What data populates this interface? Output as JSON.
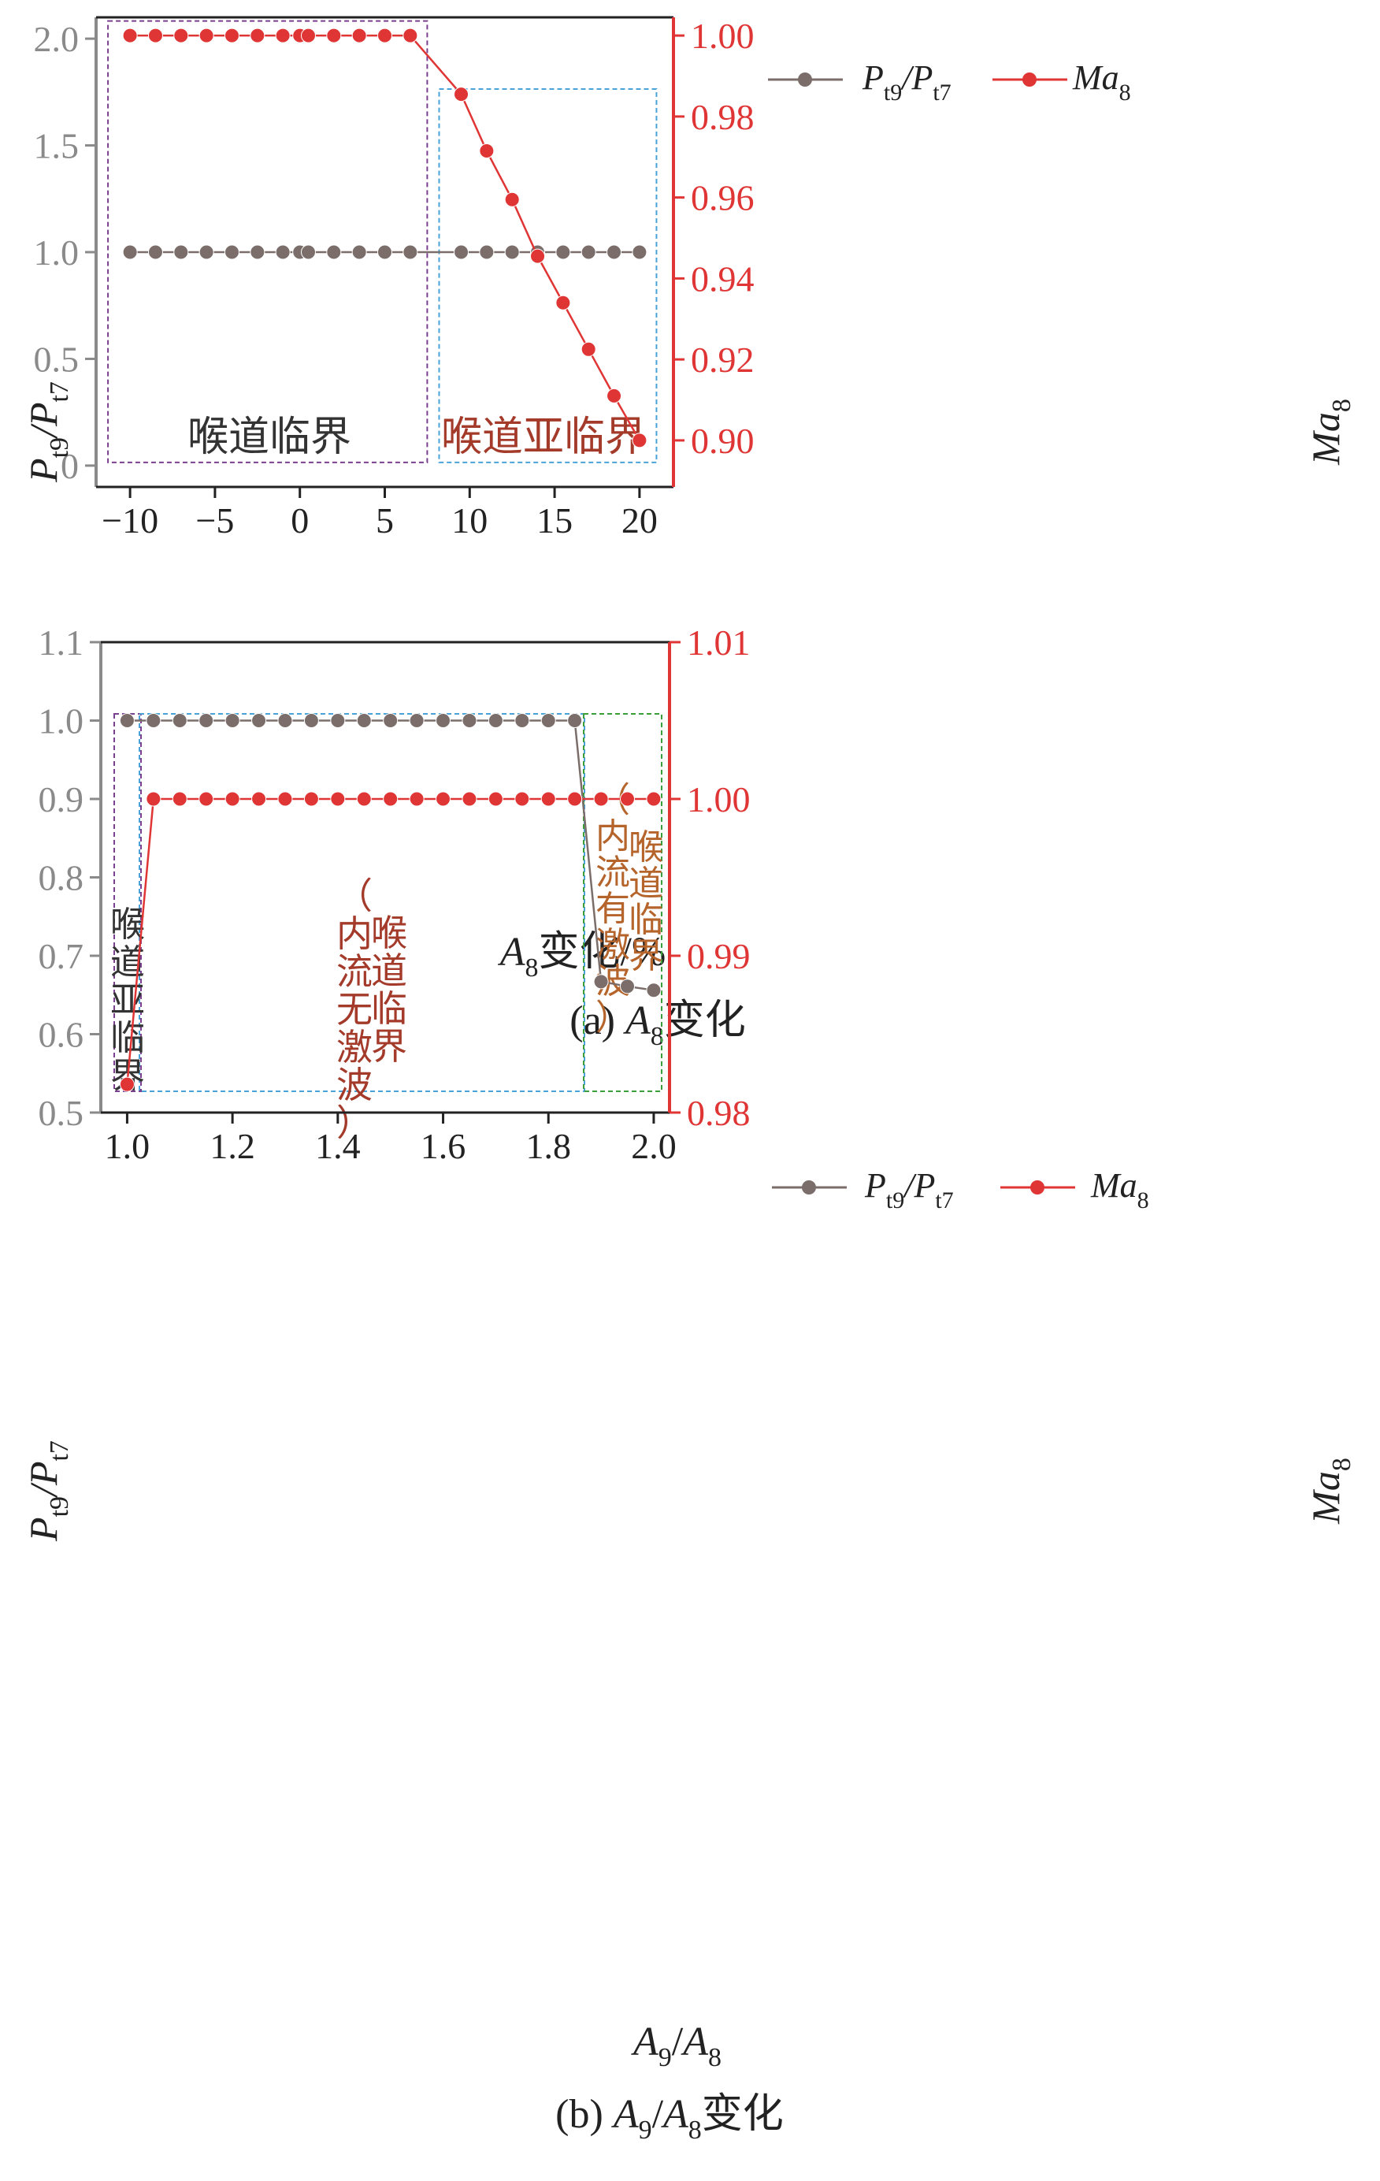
{
  "colors": {
    "gray": "#7b6e6a",
    "red": "#e03535",
    "purple_box": "#7a3f8f",
    "blue_box": "#4aa3d8",
    "green_box": "#3a9e3a",
    "text_dark_red": "#a33a2a",
    "text_brown": "#b5652c",
    "axis_gray": "#8a8a8a"
  },
  "chart_data": [
    {
      "type": "line",
      "caption": "(a) A8变化",
      "xlabel": "A8变化/%",
      "ylabel_left": "Pt9/Pt7",
      "ylabel_right": "Ma8",
      "xlim": [
        -12,
        22
      ],
      "ylim_left": [
        -0.1,
        2.1
      ],
      "ylim_right": [
        0.8885,
        1.0045
      ],
      "xticks": [
        "−10",
        "−5",
        "0",
        "5",
        "10",
        "15",
        "20"
      ],
      "yticks_left": [
        "0",
        "0.5",
        "1.0",
        "1.5",
        "2.0"
      ],
      "yticks_right": [
        "0.90",
        "0.92",
        "0.94",
        "0.96",
        "0.98",
        "1.00"
      ],
      "legend": [
        "Pt9/Pt7",
        "Ma8"
      ],
      "series": [
        {
          "name": "Pt9/Pt7",
          "axis": "left",
          "x": [
            -10,
            -8.5,
            -7,
            -5.5,
            -4,
            -2.5,
            -1,
            0,
            0.5,
            2,
            3.5,
            5,
            6.5,
            9.5,
            11,
            12.5,
            14,
            15.5,
            17,
            18.5,
            20
          ],
          "values": [
            1,
            1,
            1,
            1,
            1,
            1,
            1,
            1,
            1,
            1,
            1,
            1,
            1,
            1,
            1,
            1,
            1,
            1,
            1,
            1,
            1
          ]
        },
        {
          "name": "Ma8",
          "axis": "right",
          "x": [
            -10,
            -8.5,
            -7,
            -5.5,
            -4,
            -2.5,
            -1,
            0,
            0.5,
            2,
            3.5,
            5,
            6.5,
            9.5,
            11,
            12.5,
            14,
            15.5,
            17,
            18.5,
            20
          ],
          "values": [
            1.0,
            1.0,
            1.0,
            1.0,
            1.0,
            1.0,
            1.0,
            1.0,
            1.0,
            1.0,
            1.0,
            1.0,
            1.0,
            0.9855,
            0.9715,
            0.9595,
            0.9455,
            0.934,
            0.9225,
            0.911,
            0.9
          ]
        }
      ],
      "regions": [
        {
          "label": "喉道临界",
          "from": -11.3,
          "to": 7.5
        },
        {
          "label": "喉道亚临界",
          "from": 8.2,
          "to": 21
        }
      ]
    },
    {
      "type": "line",
      "caption": "(b) A9/A8变化",
      "xlabel": "A9/A8",
      "ylabel_left": "Pt9/Pt7",
      "ylabel_right": "Ma8",
      "xlim": [
        0.95,
        2.03
      ],
      "ylim_left": [
        0.5,
        1.1
      ],
      "ylim_right": [
        0.98,
        1.01
      ],
      "xticks": [
        "1.0",
        "1.2",
        "1.4",
        "1.6",
        "1.8",
        "2.0"
      ],
      "yticks_left": [
        "0.5",
        "0.6",
        "0.7",
        "0.8",
        "0.9",
        "1.0",
        "1.1"
      ],
      "yticks_right": [
        "0.98",
        "0.99",
        "1.00",
        "1.01"
      ],
      "legend": [
        "Pt9/Pt7",
        "Ma8"
      ],
      "series": [
        {
          "name": "Pt9/Pt7",
          "axis": "left",
          "x": [
            1.0,
            1.05,
            1.1,
            1.15,
            1.2,
            1.25,
            1.3,
            1.35,
            1.4,
            1.45,
            1.5,
            1.55,
            1.6,
            1.65,
            1.7,
            1.75,
            1.8,
            1.85,
            1.9,
            1.95,
            2.0
          ],
          "values": [
            1,
            1,
            1,
            1,
            1,
            1,
            1,
            1,
            1,
            1,
            1,
            1,
            1,
            1,
            1,
            1,
            1,
            1,
            0.667,
            0.661,
            0.656
          ]
        },
        {
          "name": "Ma8",
          "axis": "right",
          "x": [
            1.0,
            1.05,
            1.1,
            1.15,
            1.2,
            1.25,
            1.3,
            1.35,
            1.4,
            1.45,
            1.5,
            1.55,
            1.6,
            1.65,
            1.7,
            1.75,
            1.8,
            1.85,
            1.9,
            1.95,
            2.0
          ],
          "values": [
            0.9818,
            1.0,
            1.0,
            1.0,
            1.0,
            1.0,
            1.0,
            1.0,
            1.0,
            1.0,
            1.0,
            1.0,
            1.0,
            1.0,
            1.0,
            1.0,
            1.0,
            1.0,
            1.0,
            1.0,
            1.0
          ]
        }
      ],
      "regions": [
        {
          "label_lines": [
            "喉",
            "道",
            "亚",
            "临",
            "界"
          ]
        },
        {
          "label_col1": [
            "（",
            "内",
            "流",
            "无",
            "激",
            "波",
            "）"
          ],
          "label_col2": [
            "喉",
            "道",
            "临",
            "界"
          ]
        },
        {
          "label_col1": [
            "（",
            "内",
            "流",
            "有",
            "激",
            "波",
            "）"
          ],
          "label_col2": [
            "喉",
            "道",
            "临",
            "界"
          ]
        }
      ]
    }
  ]
}
